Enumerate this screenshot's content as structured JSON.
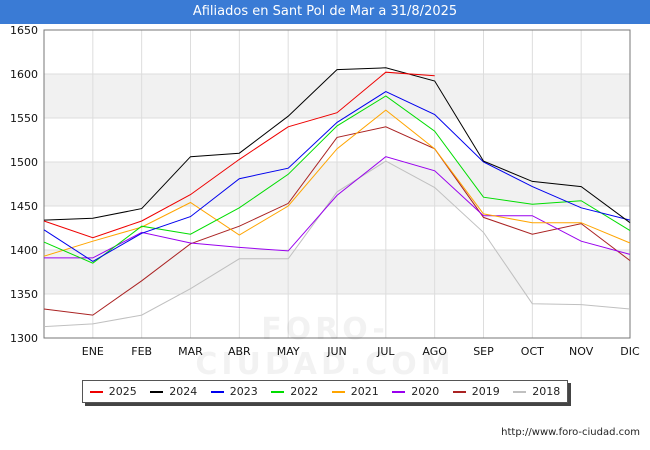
{
  "title": "Afiliados en Sant Pol de Mar a 31/8/2025",
  "credit": "http://www.foro-ciudad.com",
  "watermark": "FORO-CIUDAD.COM",
  "chart_data": {
    "type": "line",
    "title": "Afiliados en Sant Pol de Mar a 31/8/2025",
    "xlabel": "",
    "ylabel": "",
    "categories": [
      "",
      "ENE",
      "FEB",
      "MAR",
      "ABR",
      "MAY",
      "JUN",
      "JUL",
      "AGO",
      "SEP",
      "OCT",
      "NOV",
      "DIC"
    ],
    "ylim": [
      1300,
      1650
    ],
    "yticks": [
      1300,
      1350,
      1400,
      1450,
      1500,
      1550,
      1600,
      1650
    ],
    "grid": true,
    "legend_position": "bottom",
    "series": [
      {
        "name": "2025",
        "color": "#ee0000",
        "values": [
          1433,
          1414,
          1433,
          1463,
          1503,
          1540,
          1556,
          1602,
          1598,
          null,
          null,
          null,
          null
        ]
      },
      {
        "name": "2024",
        "color": "#000000",
        "values": [
          1434,
          1436,
          1447,
          1506,
          1510,
          1552,
          1605,
          1607,
          1592,
          1501,
          1478,
          1472,
          1431
        ]
      },
      {
        "name": "2023",
        "color": "#0000ee",
        "values": [
          1423,
          1387,
          1419,
          1438,
          1481,
          1493,
          1545,
          1580,
          1554,
          1500,
          1472,
          1448,
          1434
        ]
      },
      {
        "name": "2022",
        "color": "#00dd00",
        "values": [
          1409,
          1385,
          1427,
          1418,
          1448,
          1486,
          1541,
          1575,
          1535,
          1460,
          1452,
          1456,
          1422
        ]
      },
      {
        "name": "2021",
        "color": "#ffa500",
        "values": [
          1393,
          1410,
          1426,
          1454,
          1417,
          1450,
          1515,
          1559,
          1515,
          1441,
          1431,
          1431,
          1408
        ]
      },
      {
        "name": "2020",
        "color": "#9900ee",
        "values": [
          1391,
          1391,
          1420,
          1408,
          1403,
          1399,
          1462,
          1506,
          1490,
          1439,
          1439,
          1410,
          1395
        ]
      },
      {
        "name": "2019",
        "color": "#aa2222",
        "values": [
          1333,
          1326,
          1365,
          1407,
          1427,
          1453,
          1528,
          1540,
          1515,
          1437,
          1418,
          1430,
          1388
        ]
      },
      {
        "name": "2018",
        "color": "#c0c0c0",
        "values": [
          1313,
          1316,
          1326,
          1356,
          1390,
          1390,
          1466,
          1501,
          1471,
          1420,
          1339,
          1338,
          1333
        ]
      }
    ]
  }
}
